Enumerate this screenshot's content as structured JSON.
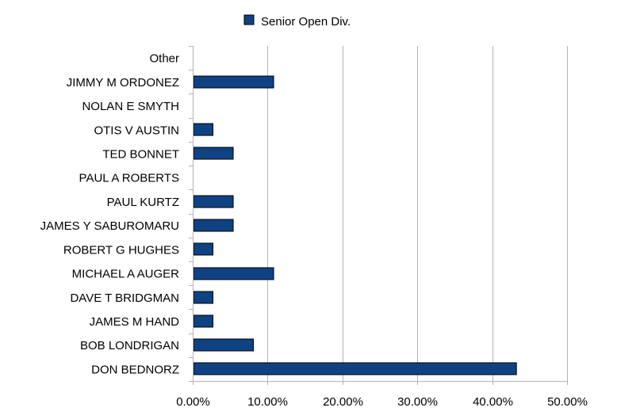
{
  "chart_data": {
    "type": "bar",
    "orientation": "horizontal",
    "categories": [
      "DON BEDNORZ",
      "BOB LONDRIGAN",
      "JAMES M HAND",
      "DAVE T BRIDGMAN",
      "MICHAEL A AUGER",
      "ROBERT G HUGHES",
      "JAMES Y SABUROMARU",
      "PAUL KURTZ",
      "PAUL A ROBERTS",
      "TED BONNET",
      "OTIS V AUSTIN",
      "NOLAN E SMYTH",
      "JIMMY M ORDONEZ",
      "Other"
    ],
    "series": [
      {
        "name": "Senior Open Div.",
        "color": "#0f4282",
        "values": [
          43.24,
          8.11,
          2.7,
          2.7,
          10.81,
          2.7,
          5.41,
          5.41,
          0,
          5.41,
          2.7,
          0,
          10.81,
          0
        ]
      }
    ],
    "xlim": [
      0,
      50
    ],
    "xticks": [
      "0.00%",
      "10.00%",
      "20.00%",
      "30.00%",
      "40.00%",
      "50.00%"
    ],
    "xtick_values": [
      0,
      10,
      20,
      30,
      40,
      50
    ],
    "grid": true,
    "legend_position": "top"
  }
}
